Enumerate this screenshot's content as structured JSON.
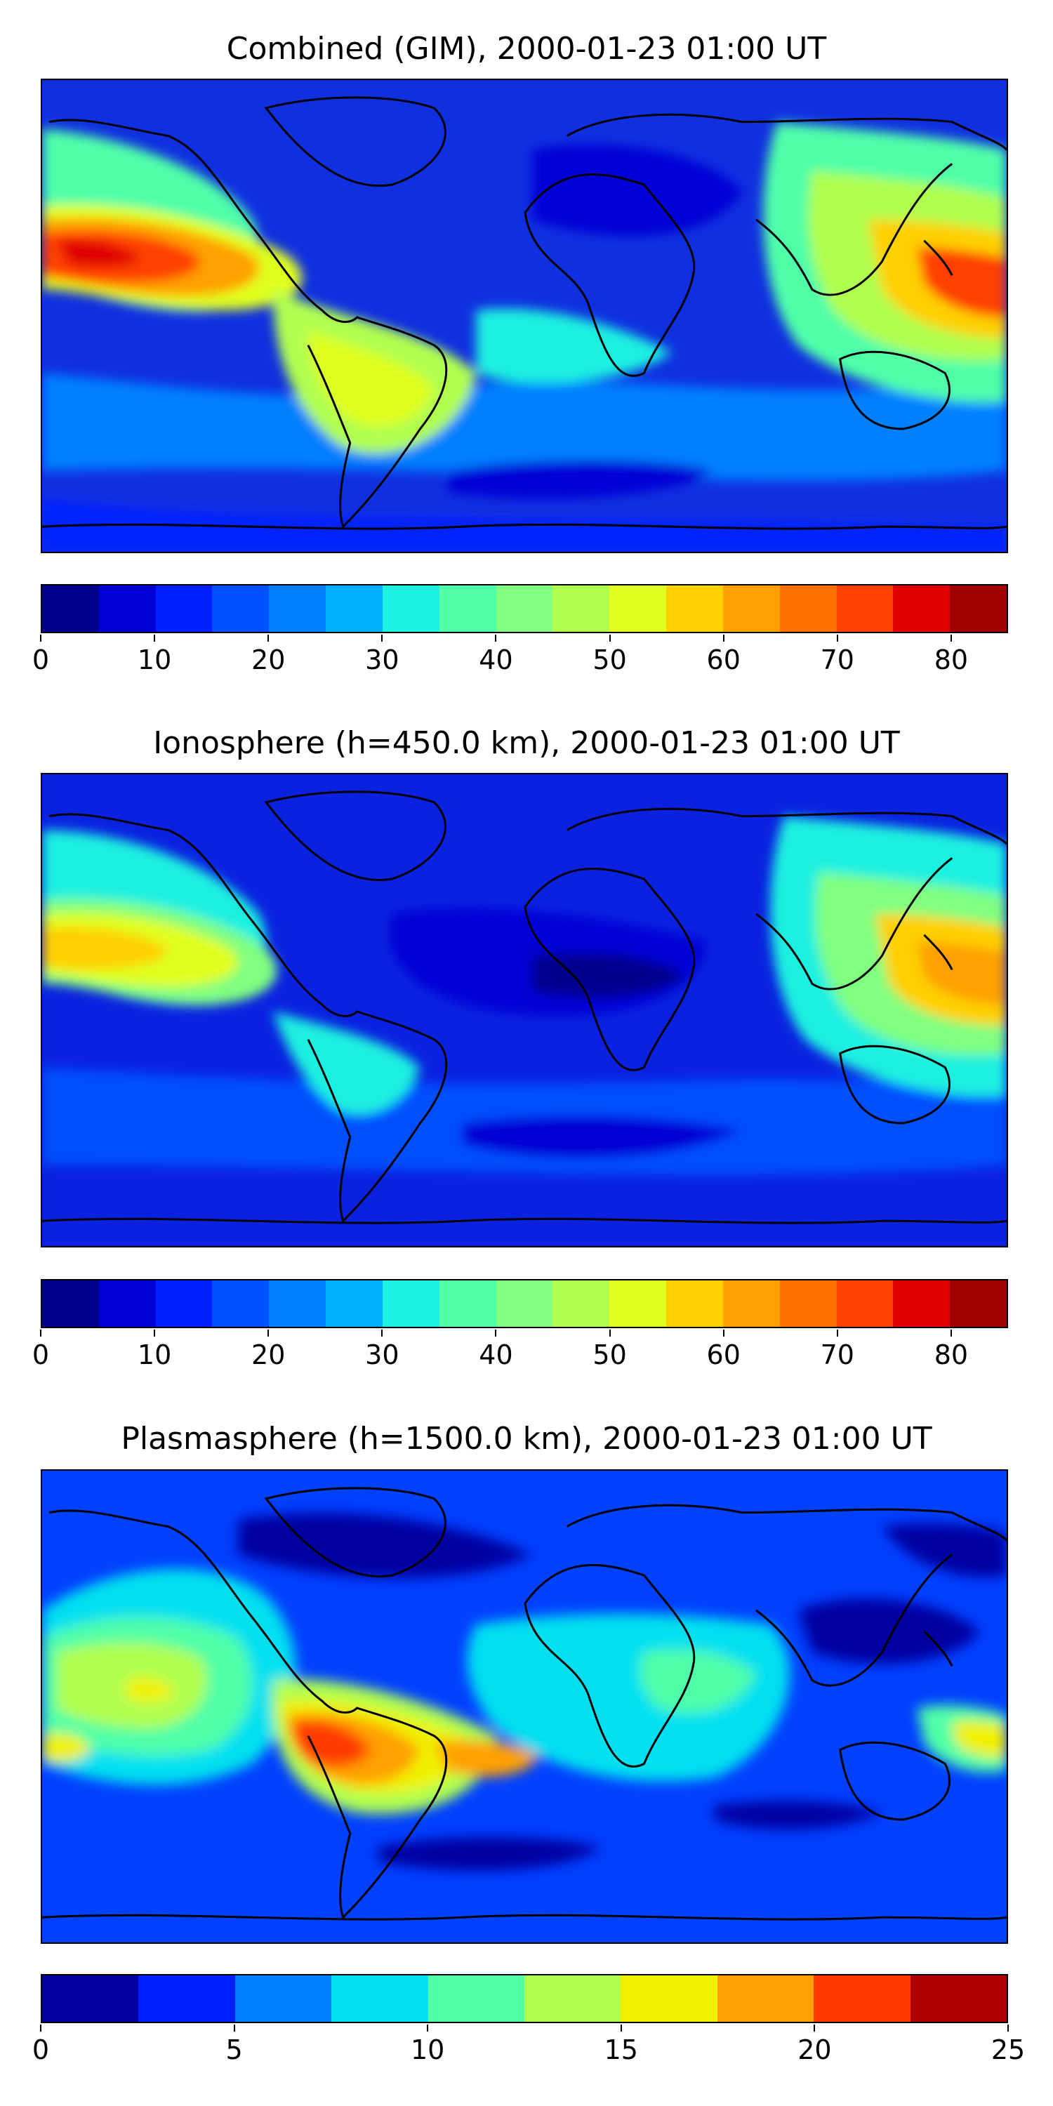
{
  "panels": [
    {
      "title": "Combined (GIM), 2000-01-23 01:00 UT",
      "colorbar": {
        "min": 0,
        "max": 85,
        "step": 5,
        "colors": [
          "#00008f",
          "#0000d6",
          "#0020ff",
          "#0050ff",
          "#0080ff",
          "#00b0ff",
          "#1ef0e0",
          "#50ffa8",
          "#80ff80",
          "#b0ff4f",
          "#e0ff1e",
          "#ffd000",
          "#ffa000",
          "#ff7000",
          "#ff4000",
          "#e00000",
          "#9f0000"
        ],
        "tick_values": [
          0,
          10,
          20,
          30,
          40,
          50,
          60,
          70,
          80
        ],
        "tick_labels": [
          "0",
          "10",
          "20",
          "30",
          "40",
          "50",
          "60",
          "70",
          "80"
        ]
      },
      "background_color": "#1030e0",
      "field_blobs": [
        {
          "name": "pacific-east-max",
          "value": 75
        },
        {
          "name": "pacific-west-max",
          "value": 78
        },
        {
          "name": "south-america-band",
          "value": 48
        },
        {
          "name": "north-pacific-band",
          "value": 45
        },
        {
          "name": "asia-east-band",
          "value": 55
        },
        {
          "name": "africa-west",
          "value": 30
        },
        {
          "name": "southern-belt",
          "value": 28
        },
        {
          "name": "north-africa-low",
          "value": 10
        },
        {
          "name": "antarctic-low",
          "value": 5
        }
      ]
    },
    {
      "title": "Ionosphere  (h=450.0 km), 2000-01-23 01:00 UT",
      "colorbar": {
        "min": 0,
        "max": 85,
        "step": 5,
        "colors": [
          "#00008f",
          "#0000d6",
          "#0020ff",
          "#0050ff",
          "#0080ff",
          "#00b0ff",
          "#1ef0e0",
          "#50ffa8",
          "#80ff80",
          "#b0ff4f",
          "#e0ff1e",
          "#ffd000",
          "#ffa000",
          "#ff7000",
          "#ff4000",
          "#e00000",
          "#9f0000"
        ],
        "tick_values": [
          0,
          10,
          20,
          30,
          40,
          50,
          60,
          70,
          80
        ],
        "tick_labels": [
          "0",
          "10",
          "20",
          "30",
          "40",
          "50",
          "60",
          "70",
          "80"
        ]
      },
      "background_color": "#0a22e0",
      "field_blobs": [
        {
          "name": "pacific-east-max",
          "value": 62
        },
        {
          "name": "pacific-west-max",
          "value": 66
        },
        {
          "name": "south-america-band",
          "value": 30
        },
        {
          "name": "north-pacific-band",
          "value": 38
        },
        {
          "name": "asia-east-band",
          "value": 45
        },
        {
          "name": "africa-low",
          "value": 5
        },
        {
          "name": "southern-belt",
          "value": 18
        },
        {
          "name": "antarctic-low",
          "value": 5
        }
      ]
    },
    {
      "title": "Plasmasphere (h=1500.0 km), 2000-01-23 01:00 UT",
      "colorbar": {
        "min": 0,
        "max": 25,
        "step": 2.5,
        "colors": [
          "#0000a0",
          "#0020ff",
          "#0080ff",
          "#00e0f0",
          "#50ffa8",
          "#b0ff4f",
          "#f0f000",
          "#ffa000",
          "#ff3a00",
          "#b00000"
        ],
        "tick_values": [
          0,
          5,
          10,
          15,
          20,
          25
        ],
        "tick_labels": [
          "0",
          "5",
          "10",
          "15",
          "20",
          "25"
        ]
      },
      "background_color": "#0040ff",
      "field_blobs": [
        {
          "name": "south-america-max",
          "value": 22
        },
        {
          "name": "south-atlantic-band",
          "value": 20
        },
        {
          "name": "pacific-band",
          "value": 15
        },
        {
          "name": "africa-band",
          "value": 12
        },
        {
          "name": "australia-band",
          "value": 15
        },
        {
          "name": "north-low",
          "value": 1
        },
        {
          "name": "asia-low",
          "value": 1
        },
        {
          "name": "southern-low",
          "value": 1
        }
      ]
    }
  ]
}
